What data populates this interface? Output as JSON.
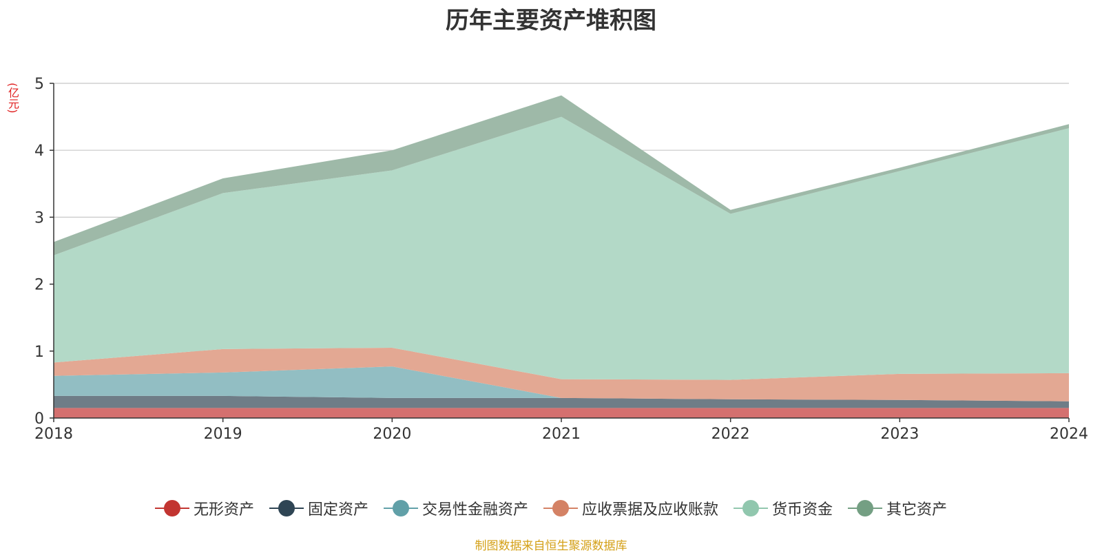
{
  "chart_data": {
    "type": "area",
    "stacked": true,
    "title": "历年主要资产堆积图",
    "unit": "(亿元)",
    "categories": [
      "2018",
      "2019",
      "2020",
      "2021",
      "2022",
      "2023",
      "2024"
    ],
    "ylim": [
      0,
      5
    ],
    "yticks": [
      "0",
      "1",
      "2",
      "3",
      "4",
      "5"
    ],
    "grid": true,
    "legend_position": "bottom",
    "series": [
      {
        "name": "无形资产",
        "color": "#c23531",
        "area_color": "#d4706f",
        "values": [
          0.15,
          0.15,
          0.15,
          0.15,
          0.15,
          0.15,
          0.15
        ]
      },
      {
        "name": "固定资产",
        "color": "#2f4554",
        "area_color": "#6f7d87",
        "values": [
          0.18,
          0.18,
          0.15,
          0.15,
          0.13,
          0.12,
          0.1
        ]
      },
      {
        "name": "交易性金融资产",
        "color": "#61a0a8",
        "area_color": "#92bec3",
        "values": [
          0.3,
          0.35,
          0.47,
          0.0,
          0.0,
          0.0,
          0.0
        ]
      },
      {
        "name": "应收票据及应收账款",
        "color": "#d48265",
        "area_color": "#e3a893",
        "values": [
          0.2,
          0.35,
          0.28,
          0.28,
          0.29,
          0.39,
          0.42
        ]
      },
      {
        "name": "货币资金",
        "color": "#91c7ae",
        "area_color": "#b3d9c7",
        "values": [
          1.6,
          2.33,
          2.65,
          3.92,
          2.48,
          3.03,
          3.66
        ]
      },
      {
        "name": "其它资产",
        "color": "#749f83",
        "area_color": "#9eb9a8",
        "values": [
          0.2,
          0.22,
          0.3,
          0.32,
          0.06,
          0.05,
          0.06
        ]
      }
    ]
  },
  "legend": {
    "items": [
      {
        "label": "无形资产"
      },
      {
        "label": "固定资产"
      },
      {
        "label": "交易性金融资产"
      },
      {
        "label": "应收票据及应收账款"
      },
      {
        "label": "货币资金"
      },
      {
        "label": "其它资产"
      }
    ]
  },
  "footer": {
    "source": "制图数据来自恒生聚源数据库"
  }
}
